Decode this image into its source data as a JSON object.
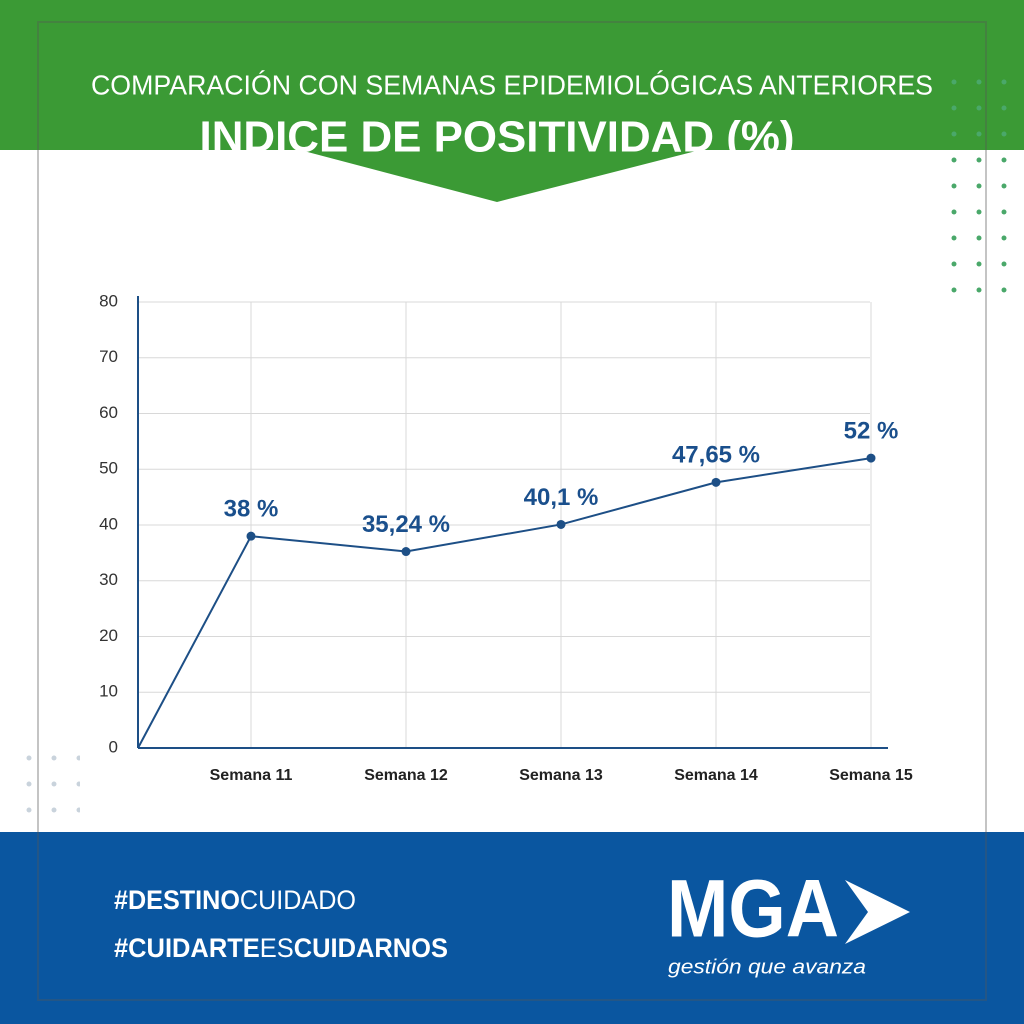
{
  "header": {
    "subtitle": "COMPARACIÓN CON SEMANAS EPIDEMIOLÓGICAS ANTERIORES",
    "title": "INDICE DE POSITIVIDAD (%)"
  },
  "chart_data": {
    "type": "line",
    "categories": [
      null,
      "Semana 11",
      "Semana 12",
      "Semana 13",
      "Semana 14",
      "Semana 15"
    ],
    "values": [
      0,
      38,
      35.24,
      40.1,
      47.65,
      52
    ],
    "value_labels": [
      null,
      "38 %",
      "35,24 %",
      "40,1 %",
      "47,65 %",
      "52 %"
    ],
    "color": "#1d4f86",
    "ylim": [
      0,
      80
    ],
    "yticks": [
      0,
      10,
      20,
      30,
      40,
      50,
      60,
      70,
      80
    ],
    "grid": true
  },
  "footer": {
    "hashtags": [
      [
        "#DESTINO",
        "CUIDADO"
      ],
      [
        "#CUIDARTE",
        "ES",
        "CUIDARNOS"
      ]
    ],
    "logo": "MGA",
    "tagline": "gestión que avanza"
  }
}
